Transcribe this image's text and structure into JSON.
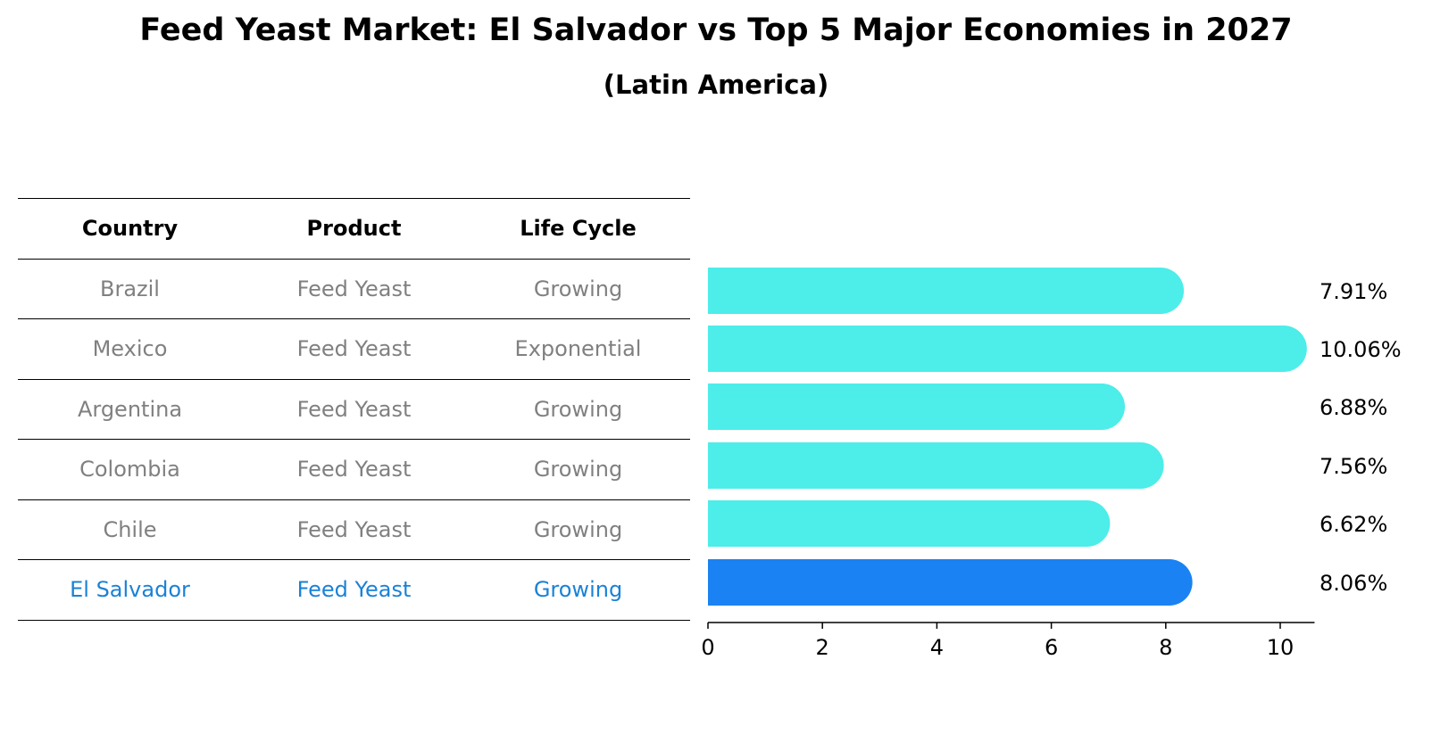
{
  "title": "Feed Yeast Market: El Salvador vs Top 5 Major Economies in 2027",
  "subtitle": "(Latin America)",
  "table": {
    "headers": [
      "Country",
      "Product",
      "Life Cycle"
    ],
    "rows": [
      [
        "Brazil",
        "Feed Yeast",
        "Growing"
      ],
      [
        "Mexico",
        "Feed Yeast",
        "Exponential"
      ],
      [
        "Argentina",
        "Feed Yeast",
        "Growing"
      ],
      [
        "Colombia",
        "Feed Yeast",
        "Growing"
      ],
      [
        "Chile",
        "Feed Yeast",
        "Growing"
      ],
      [
        "El Salvador",
        "Feed Yeast",
        "Growing"
      ]
    ],
    "highlight_color": "#1a82d6",
    "text_color": "#808080"
  },
  "chart_data": {
    "type": "bar",
    "orientation": "horizontal",
    "categories": [
      "Brazil",
      "Mexico",
      "Argentina",
      "Colombia",
      "Chile",
      "El Salvador"
    ],
    "values": [
      7.91,
      10.06,
      6.88,
      7.56,
      6.62,
      8.06
    ],
    "value_labels": [
      "7.91%",
      "10.06%",
      "6.88%",
      "7.56%",
      "6.62%",
      "8.06%"
    ],
    "xlim": [
      0,
      10.6
    ],
    "xticks": [
      0,
      2,
      4,
      6,
      8,
      10
    ],
    "bar_color": "#4dede9",
    "highlight_color": "#1a82f2",
    "highlight_index": 5
  }
}
